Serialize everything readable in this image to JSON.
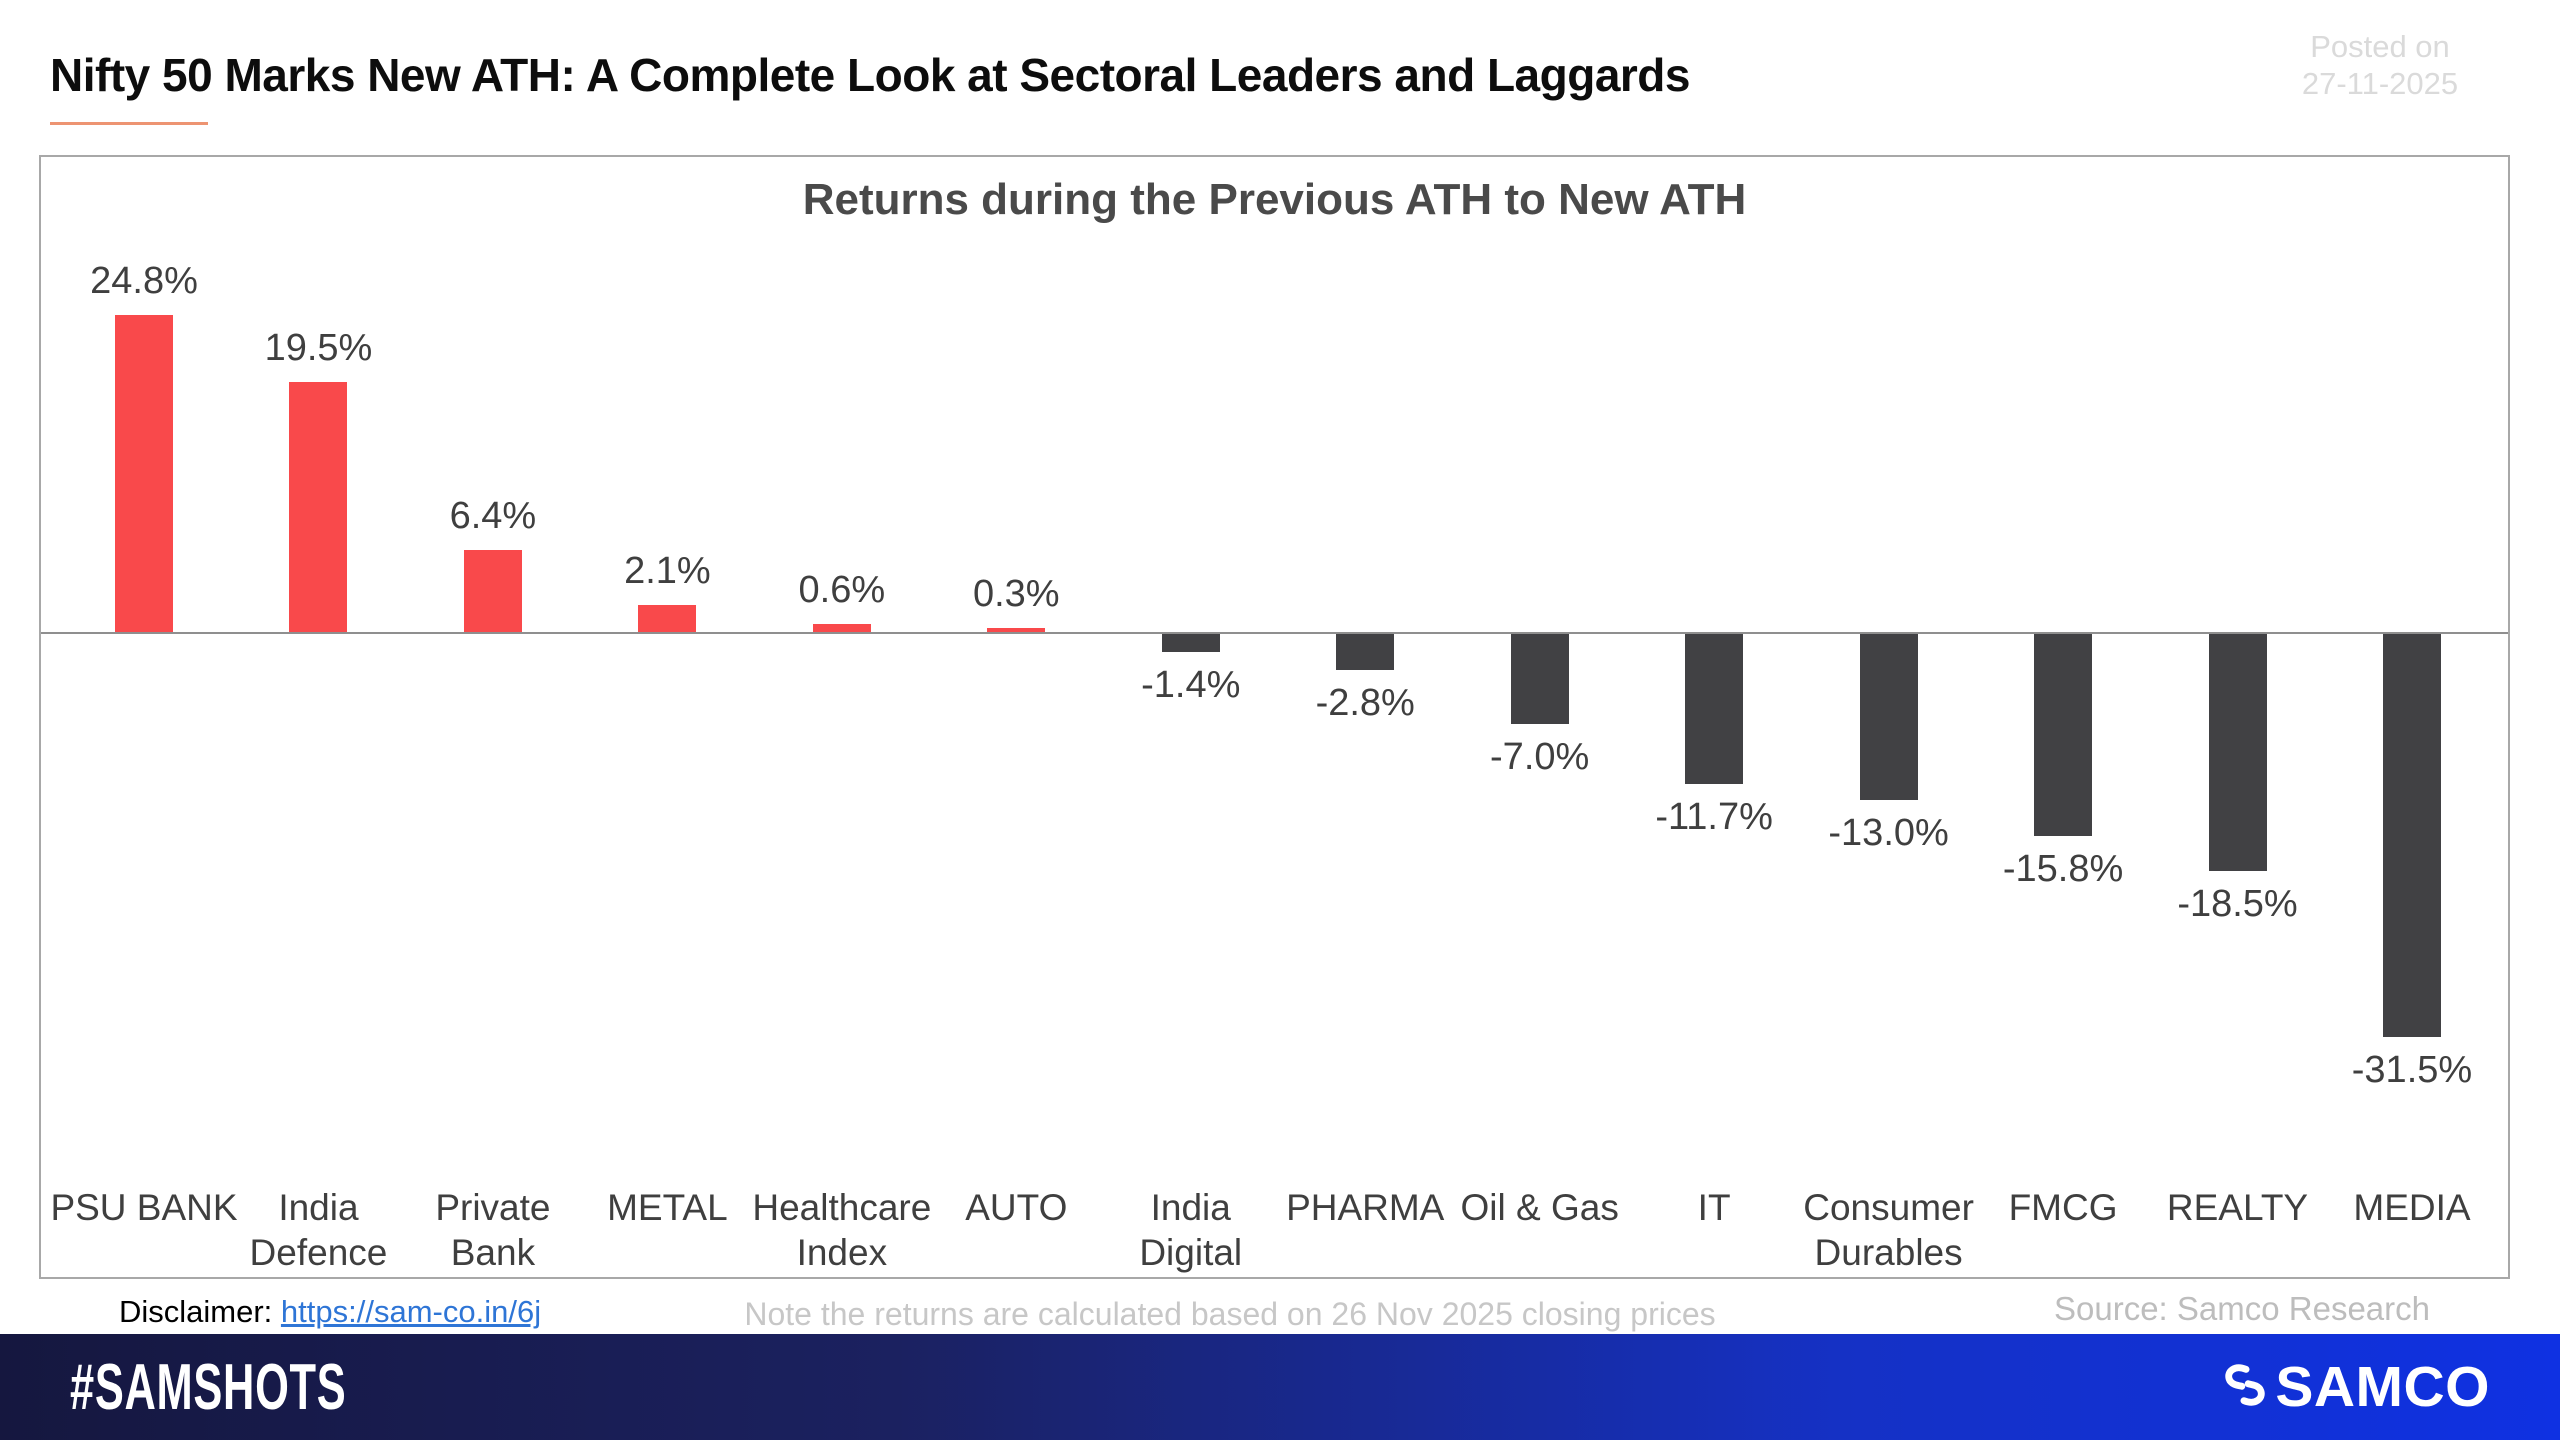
{
  "page": {
    "title": "Nifty 50 Marks New ATH: A Complete Look at Sectoral Leaders and Laggards",
    "posted_on_label": "Posted on",
    "posted_on_date": "27-11-2025",
    "accent_underline_color": "#ed9472"
  },
  "chart_data": {
    "type": "bar",
    "title": "Returns during the Previous ATH to New ATH",
    "categories": [
      "PSU BANK",
      "India Defence",
      "Private Bank",
      "METAL",
      "Healthcare Index",
      "AUTO",
      "India Digital",
      "PHARMA",
      "Oil & Gas",
      "IT",
      "Consumer Durables",
      "FMCG",
      "REALTY",
      "MEDIA"
    ],
    "category_lines": [
      [
        "PSU BANK"
      ],
      [
        "India",
        "Defence"
      ],
      [
        "Private",
        "Bank"
      ],
      [
        "METAL"
      ],
      [
        "Healthcare",
        "Index"
      ],
      [
        "AUTO"
      ],
      [
        "India",
        "Digital"
      ],
      [
        "PHARMA"
      ],
      [
        "Oil & Gas"
      ],
      [
        "IT"
      ],
      [
        "Consumer",
        "Durables"
      ],
      [
        "FMCG"
      ],
      [
        "REALTY"
      ],
      [
        "MEDIA"
      ]
    ],
    "values": [
      24.8,
      19.5,
      6.4,
      2.1,
      0.6,
      0.3,
      -1.4,
      -2.8,
      -7.0,
      -11.7,
      -13.0,
      -15.8,
      -18.5,
      -31.5
    ],
    "labels": [
      "24.8%",
      "19.5%",
      "6.4%",
      "2.1%",
      "0.6%",
      "0.3%",
      "-1.4%",
      "-2.8%",
      "-7.0%",
      "-11.7%",
      "-13.0%",
      "-15.8%",
      "-18.5%",
      "-31.5%"
    ],
    "unit": "%",
    "xlabel": "",
    "ylabel": "",
    "ylim": [
      -35,
      27
    ],
    "grid": false,
    "legend": "none",
    "positive_color": "#f9494b",
    "negative_color": "#414144",
    "axis_color": "#8f8f8f"
  },
  "footer": {
    "disclaimer_label": "Disclaimer:",
    "disclaimer_link": "https://sam-co.in/6j",
    "note": "Note the returns are calculated based on 26 Nov 2025 closing prices",
    "source": "Source: Samco Research",
    "link_color": "#2e75d6"
  },
  "brandbar": {
    "hashtag": "#SAMSHOTS",
    "brand": "SAMCO",
    "gradient_start": "#15173f",
    "gradient_end": "#0f31e2"
  }
}
